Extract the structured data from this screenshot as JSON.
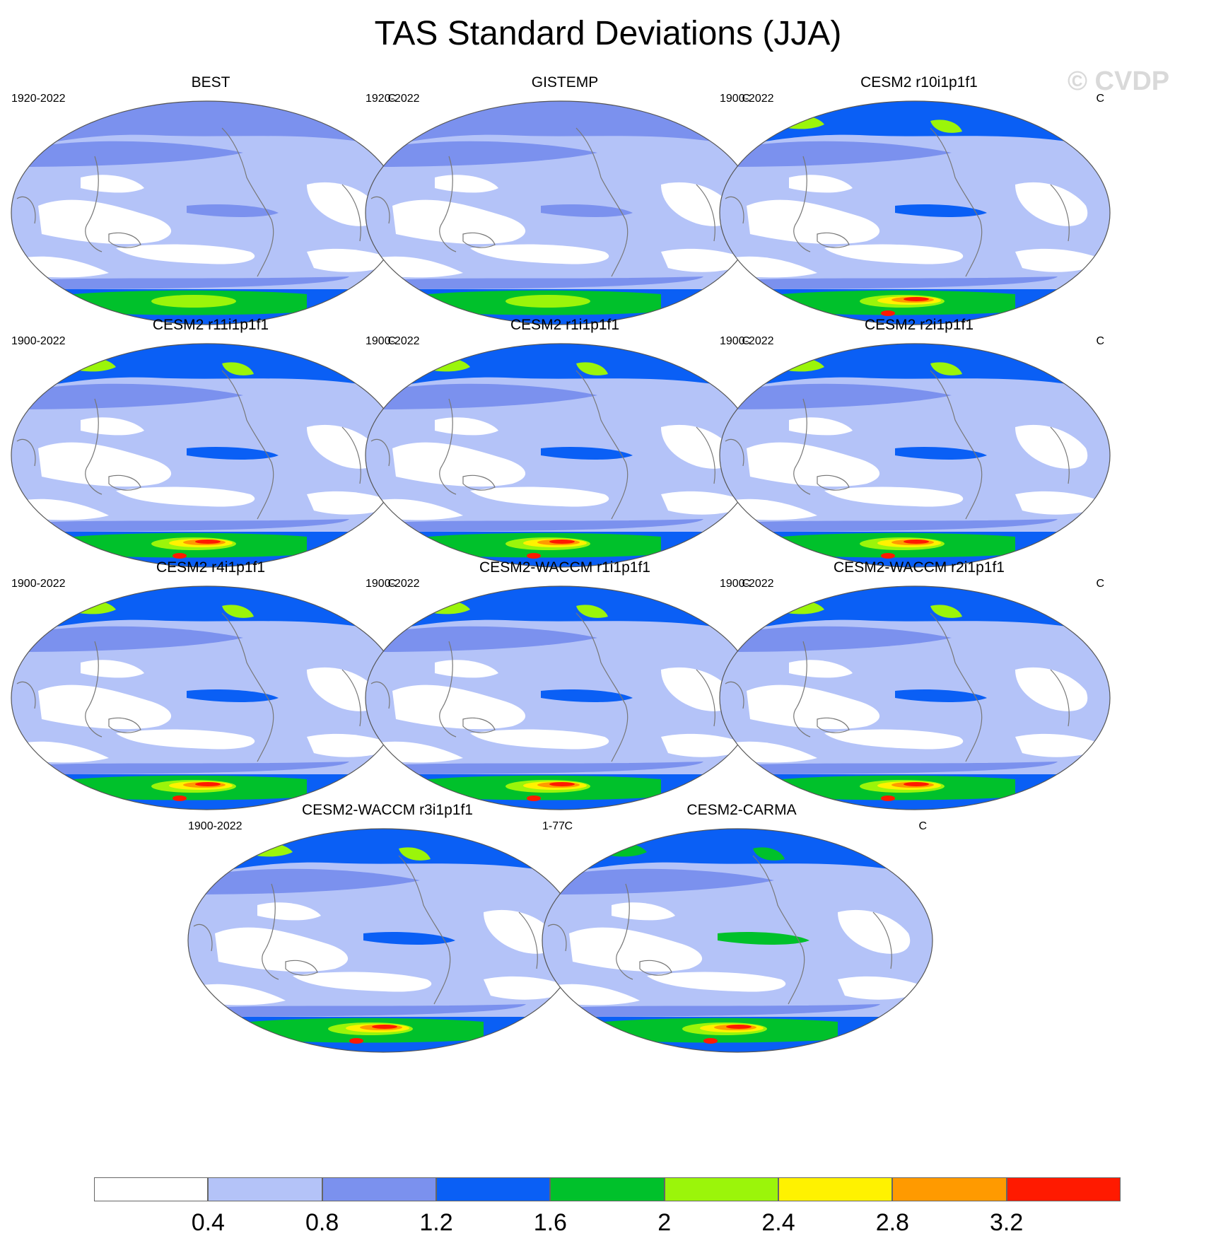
{
  "title": "TAS Standard Deviations (JJA)",
  "watermark": "© CVDP",
  "units": "C",
  "panels": [
    {
      "title": "BEST",
      "period": "1920-2022",
      "variant": "obs_best",
      "antarctic_max": 2.4,
      "region_bands": {
        "arctic": 1.2,
        "tropical_pacific": 0.8,
        "southern_ocean": 0.8
      }
    },
    {
      "title": "GISTEMP",
      "period": "1920-2022",
      "variant": "obs_gis",
      "antarctic_max": 2.4,
      "region_bands": {
        "arctic": 1.2,
        "tropical_pacific": 0.8,
        "southern_ocean": 0.8
      }
    },
    {
      "title": "CESM2 r10i1p1f1",
      "period": "1900-2022",
      "variant": "model",
      "antarctic_max": 3.2,
      "region_bands": {
        "arctic": 2.0,
        "tropical_pacific": 1.2,
        "southern_ocean": 0.8
      }
    },
    {
      "title": "CESM2 r11i1p1f1",
      "period": "1900-2022",
      "variant": "model",
      "antarctic_max": 3.2,
      "region_bands": {
        "arctic": 2.0,
        "tropical_pacific": 1.2,
        "southern_ocean": 0.8
      }
    },
    {
      "title": "CESM2 r1i1p1f1",
      "period": "1900-2022",
      "variant": "model",
      "antarctic_max": 3.2,
      "region_bands": {
        "arctic": 2.0,
        "tropical_pacific": 1.2,
        "southern_ocean": 0.8
      }
    },
    {
      "title": "CESM2 r2i1p1f1",
      "period": "1900-2022",
      "variant": "model",
      "antarctic_max": 3.2,
      "region_bands": {
        "arctic": 2.0,
        "tropical_pacific": 1.2,
        "southern_ocean": 0.8
      }
    },
    {
      "title": "CESM2 r4i1p1f1",
      "period": "1900-2022",
      "variant": "model",
      "antarctic_max": 3.2,
      "region_bands": {
        "arctic": 2.0,
        "tropical_pacific": 1.2,
        "southern_ocean": 0.8
      }
    },
    {
      "title": "CESM2-WACCM r1i1p1f1",
      "period": "1900-2022",
      "variant": "model",
      "antarctic_max": 3.2,
      "region_bands": {
        "arctic": 2.0,
        "tropical_pacific": 1.2,
        "southern_ocean": 0.8
      }
    },
    {
      "title": "CESM2-WACCM r2i1p1f1",
      "period": "1900-2022",
      "variant": "model",
      "antarctic_max": 3.2,
      "region_bands": {
        "arctic": 2.0,
        "tropical_pacific": 1.2,
        "southern_ocean": 0.8
      }
    },
    {
      "title": "CESM2-WACCM r3i1p1f1",
      "period": "1900-2022",
      "variant": "model",
      "antarctic_max": 3.2,
      "region_bands": {
        "arctic": 2.0,
        "tropical_pacific": 1.2,
        "southern_ocean": 0.8
      }
    },
    {
      "title": "CESM2-CARMA",
      "period": "1-77",
      "variant": "carma",
      "antarctic_max": 3.2,
      "region_bands": {
        "arctic": 1.6,
        "tropical_pacific": 1.6,
        "southern_ocean": 0.8
      }
    }
  ],
  "colorbar": {
    "labels": [
      "0.4",
      "0.8",
      "1.2",
      "1.6",
      "2",
      "2.4",
      "2.8",
      "3.2"
    ],
    "colors": [
      "#ffffff",
      "#b4c3f8",
      "#7b91ee",
      "#0a5ff5",
      "#00c12b",
      "#9bf50a",
      "#fff200",
      "#ff9a00",
      "#ff1a00"
    ]
  },
  "map_style": {
    "land_outline": "#777777",
    "frame": "#555555"
  }
}
